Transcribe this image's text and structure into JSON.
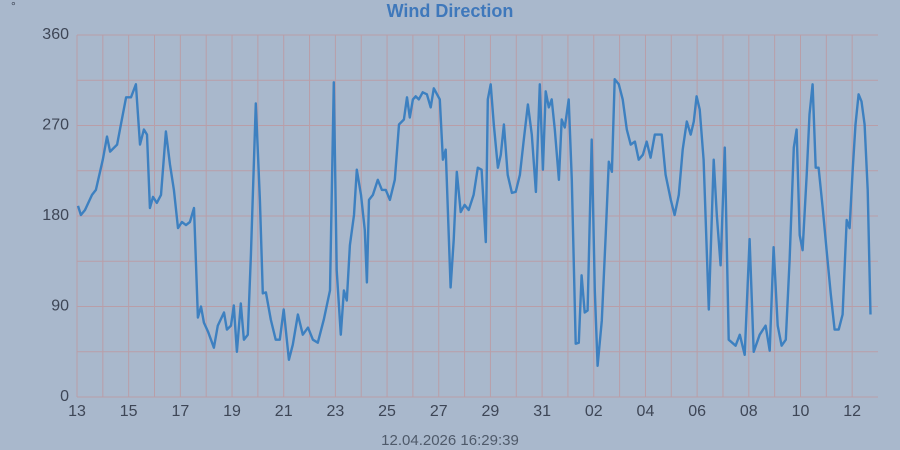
{
  "chart_data": {
    "type": "line",
    "title": "Wind Direction",
    "ylabel": "°",
    "footer": "12.04.2026 16:29:39",
    "xlim": [
      0,
      31
    ],
    "ylim": [
      0,
      360
    ],
    "xticks": [
      {
        "value": 0,
        "label": "13"
      },
      {
        "value": 2,
        "label": "15"
      },
      {
        "value": 4,
        "label": "17"
      },
      {
        "value": 6,
        "label": "19"
      },
      {
        "value": 8,
        "label": "21"
      },
      {
        "value": 10,
        "label": "23"
      },
      {
        "value": 12,
        "label": "25"
      },
      {
        "value": 14,
        "label": "27"
      },
      {
        "value": 16,
        "label": "29"
      },
      {
        "value": 18,
        "label": "31"
      },
      {
        "value": 20,
        "label": "02"
      },
      {
        "value": 22,
        "label": "04"
      },
      {
        "value": 24,
        "label": "06"
      },
      {
        "value": 26,
        "label": "08"
      },
      {
        "value": 28,
        "label": "10"
      },
      {
        "value": 30,
        "label": "12"
      }
    ],
    "yticks": [
      0,
      90,
      180,
      270,
      360
    ],
    "grid": true,
    "series": [
      {
        "name": "Wind Direction",
        "color": "#3d80c0",
        "x": [
          0.04,
          0.15,
          0.31,
          0.58,
          0.73,
          1.0,
          1.16,
          1.28,
          1.55,
          1.7,
          1.9,
          2.09,
          2.28,
          2.44,
          2.59,
          2.71,
          2.82,
          2.94,
          3.09,
          3.25,
          3.44,
          3.6,
          3.75,
          3.91,
          4.06,
          4.22,
          4.37,
          4.53,
          4.68,
          4.8,
          4.91,
          5.07,
          5.3,
          5.45,
          5.69,
          5.8,
          5.96,
          6.07,
          6.19,
          6.34,
          6.46,
          6.61,
          6.73,
          6.92,
          7.08,
          7.19,
          7.31,
          7.5,
          7.69,
          7.85,
          8.0,
          8.2,
          8.35,
          8.55,
          8.74,
          8.94,
          9.13,
          9.32,
          9.55,
          9.79,
          9.94,
          10.05,
          10.21,
          10.33,
          10.44,
          10.56,
          10.72,
          10.83,
          10.99,
          11.14,
          11.22,
          11.3,
          11.45,
          11.64,
          11.8,
          11.95,
          12.11,
          12.3,
          12.46,
          12.65,
          12.77,
          12.88,
          13.0,
          13.11,
          13.23,
          13.38,
          13.54,
          13.69,
          13.81,
          14.04,
          14.16,
          14.27,
          14.46,
          14.58,
          14.7,
          14.85,
          15.0,
          15.16,
          15.35,
          15.51,
          15.66,
          15.82,
          15.9,
          16.01,
          16.13,
          16.29,
          16.4,
          16.52,
          16.67,
          16.83,
          16.98,
          17.14,
          17.29,
          17.45,
          17.6,
          17.76,
          17.91,
          18.03,
          18.14,
          18.26,
          18.37,
          18.49,
          18.65,
          18.76,
          18.88,
          19.03,
          19.15,
          19.3,
          19.42,
          19.53,
          19.65,
          19.76,
          19.92,
          20.04,
          20.15,
          20.31,
          20.46,
          20.58,
          20.7,
          20.81,
          20.97,
          21.12,
          21.28,
          21.43,
          21.59,
          21.74,
          21.9,
          22.05,
          22.2,
          22.36,
          22.63,
          22.78,
          22.98,
          23.13,
          23.29,
          23.44,
          23.6,
          23.75,
          23.87,
          23.98,
          24.1,
          24.25,
          24.45,
          24.64,
          24.76,
          24.91,
          25.07,
          25.22,
          25.49,
          25.65,
          25.84,
          26.03,
          26.19,
          26.42,
          26.65,
          26.81,
          26.96,
          27.12,
          27.27,
          27.43,
          27.58,
          27.74,
          27.85,
          27.97,
          28.08,
          28.24,
          28.35,
          28.47,
          28.59,
          28.7,
          28.86,
          29.01,
          29.17,
          29.32,
          29.48,
          29.63,
          29.79,
          29.9,
          30.02,
          30.13,
          30.25,
          30.36,
          30.48,
          30.6,
          30.71
        ],
        "values": [
          190,
          181,
          186,
          201,
          206,
          236,
          259,
          244,
          251,
          271,
          298,
          298,
          311,
          251,
          266,
          261,
          188,
          199,
          193,
          201,
          264,
          231,
          206,
          168,
          174,
          171,
          174,
          188,
          79,
          90,
          74,
          65,
          49,
          71,
          84,
          67,
          71,
          91,
          45,
          93,
          57,
          62,
          141,
          292,
          196,
          103,
          104,
          77,
          57,
          57,
          87,
          37,
          52,
          82,
          62,
          69,
          57,
          54,
          77,
          106,
          313,
          126,
          62,
          106,
          96,
          151,
          181,
          226,
          201,
          166,
          114,
          196,
          201,
          216,
          206,
          206,
          196,
          216,
          271,
          276,
          298,
          278,
          296,
          299,
          296,
          303,
          301,
          288,
          307,
          296,
          236,
          246,
          109,
          156,
          224,
          184,
          191,
          186,
          201,
          228,
          226,
          154,
          296,
          311,
          271,
          228,
          241,
          271,
          221,
          203,
          204,
          221,
          256,
          291,
          261,
          204,
          311,
          226,
          304,
          288,
          296,
          266,
          216,
          276,
          268,
          296,
          216,
          53,
          54,
          121,
          84,
          86,
          256,
          106,
          31,
          76,
          161,
          234,
          224,
          316,
          311,
          296,
          266,
          251,
          254,
          236,
          241,
          254,
          238,
          261,
          261,
          221,
          196,
          181,
          201,
          246,
          274,
          261,
          274,
          299,
          286,
          236,
          87,
          236,
          181,
          131,
          248,
          57,
          51,
          62,
          42,
          157,
          45,
          62,
          71,
          46,
          149,
          71,
          51,
          57,
          136,
          248,
          266,
          161,
          146,
          221,
          281,
          311,
          228,
          228,
          188,
          146,
          103,
          67,
          67,
          82,
          176,
          168,
          226,
          271,
          301,
          294,
          271,
          206,
          82
        ]
      }
    ]
  }
}
